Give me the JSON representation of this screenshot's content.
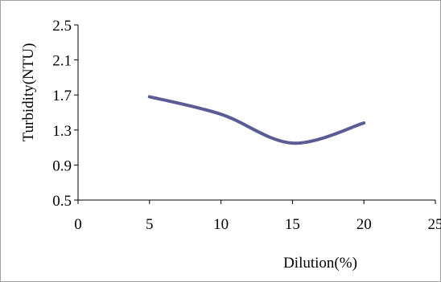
{
  "chart_data": {
    "type": "line",
    "title": "",
    "xlabel": "Dilution(%)",
    "ylabel": "Turbidity(NTU)",
    "xlim": [
      0,
      25
    ],
    "ylim": [
      0.5,
      2.5
    ],
    "x_ticks": [
      "0",
      "5",
      "10",
      "15",
      "20",
      "25"
    ],
    "y_ticks": [
      "0.5",
      "0.9",
      "1.3",
      "1.7",
      "2.1",
      "2.5"
    ],
    "grid": false,
    "legend": "none",
    "series": [
      {
        "x": [
          5,
          10,
          15,
          20
        ],
        "y": [
          1.68,
          1.48,
          1.15,
          1.38
        ],
        "color": "#5b5b95",
        "smooth": true
      }
    ]
  }
}
